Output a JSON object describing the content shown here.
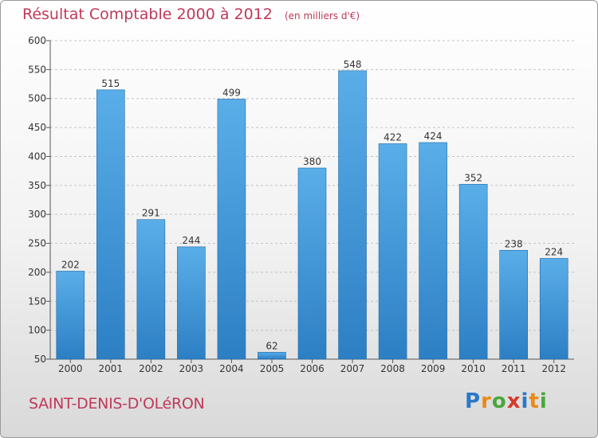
{
  "chart_data": {
    "type": "bar",
    "title": "Résultat Comptable 2000 à 2012",
    "subtitle": "(en milliers d'€)",
    "categories": [
      "2000",
      "2001",
      "2002",
      "2003",
      "2004",
      "2005",
      "2006",
      "2007",
      "2008",
      "2009",
      "2010",
      "2011",
      "2012"
    ],
    "values": [
      202,
      515,
      291,
      244,
      499,
      62,
      380,
      548,
      422,
      424,
      352,
      238,
      224
    ],
    "ylim": [
      50,
      600
    ],
    "yticks": [
      50,
      100,
      150,
      200,
      250,
      300,
      350,
      400,
      450,
      500,
      550,
      600
    ],
    "xlabel": "",
    "ylabel": "",
    "grid": true,
    "colors": {
      "bar_top": "#5aaee8",
      "bar_bottom": "#2d7fc4",
      "bar_edge": "#1f6aa8"
    }
  },
  "commune": "SAINT-DENIS-D'OLéRON",
  "brand": {
    "letters": [
      "P",
      "r",
      "o",
      "x",
      "i",
      "t",
      "i"
    ],
    "colors": [
      "#2a78c8",
      "#e98a1a",
      "#48a83a",
      "#d43a2a",
      "#2a78c8",
      "#e98a1a",
      "#48a83a"
    ]
  }
}
